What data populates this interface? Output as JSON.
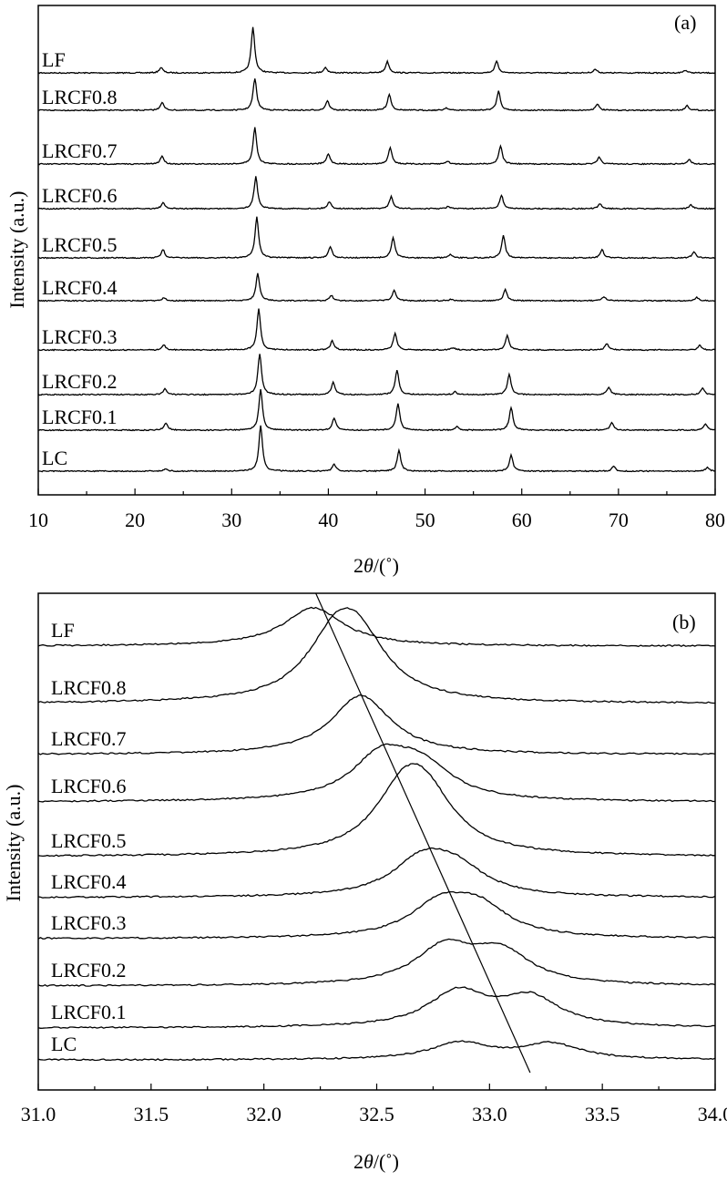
{
  "chart_data": [
    {
      "type": "line",
      "panel_label": "(a)",
      "xlabel_prefix": "2",
      "xlabel_symbol": "θ",
      "xlabel_suffix": "/(˚)",
      "ylabel": "Intensity (a.u.)",
      "xlim": [
        10,
        80
      ],
      "xticks": [
        "10",
        "20",
        "30",
        "40",
        "50",
        "60",
        "70",
        "80"
      ],
      "grid": false,
      "series": [
        {
          "name": "LF",
          "peaks": [
            [
              22.7,
              0.12
            ],
            [
              32.2,
              1.0
            ],
            [
              39.7,
              0.12
            ],
            [
              46.1,
              0.25
            ],
            [
              57.4,
              0.25
            ],
            [
              67.6,
              0.08
            ],
            [
              76.9,
              0.06
            ]
          ]
        },
        {
          "name": "LRCF0.8",
          "peaks": [
            [
              22.8,
              0.25
            ],
            [
              32.4,
              1.0
            ],
            [
              39.9,
              0.3
            ],
            [
              46.3,
              0.5
            ],
            [
              52.2,
              0.08
            ],
            [
              57.6,
              0.6
            ],
            [
              67.8,
              0.2
            ],
            [
              77.1,
              0.15
            ]
          ]
        },
        {
          "name": "LRCF0.7",
          "peaks": [
            [
              22.8,
              0.22
            ],
            [
              32.4,
              1.0
            ],
            [
              40.0,
              0.28
            ],
            [
              46.4,
              0.45
            ],
            [
              52.3,
              0.08
            ],
            [
              57.8,
              0.5
            ],
            [
              68.0,
              0.18
            ],
            [
              77.3,
              0.13
            ]
          ]
        },
        {
          "name": "LRCF0.6",
          "peaks": [
            [
              22.9,
              0.18
            ],
            [
              32.5,
              1.0
            ],
            [
              40.1,
              0.22
            ],
            [
              46.5,
              0.38
            ],
            [
              52.4,
              0.07
            ],
            [
              57.9,
              0.42
            ],
            [
              68.1,
              0.15
            ],
            [
              77.5,
              0.12
            ]
          ]
        },
        {
          "name": "LRCF0.5",
          "peaks": [
            [
              22.9,
              0.2
            ],
            [
              32.6,
              1.0
            ],
            [
              40.2,
              0.28
            ],
            [
              46.7,
              0.5
            ],
            [
              52.6,
              0.08
            ],
            [
              58.1,
              0.55
            ],
            [
              68.3,
              0.2
            ],
            [
              77.8,
              0.15
            ]
          ]
        },
        {
          "name": "LRCF0.4",
          "peaks": [
            [
              23.0,
              0.12
            ],
            [
              32.7,
              1.0
            ],
            [
              40.3,
              0.2
            ],
            [
              46.8,
              0.38
            ],
            [
              52.7,
              0.06
            ],
            [
              58.3,
              0.4
            ],
            [
              68.5,
              0.14
            ],
            [
              78.1,
              0.12
            ]
          ]
        },
        {
          "name": "LRCF0.3",
          "peaks": [
            [
              23.0,
              0.12
            ],
            [
              32.8,
              1.0
            ],
            [
              40.4,
              0.22
            ],
            [
              46.9,
              0.4
            ],
            [
              52.9,
              0.06
            ],
            [
              58.5,
              0.35
            ],
            [
              68.8,
              0.15
            ],
            [
              78.4,
              0.12
            ]
          ]
        },
        {
          "name": "LRCF0.2",
          "peaks": [
            [
              23.1,
              0.15
            ],
            [
              32.9,
              1.0
            ],
            [
              40.5,
              0.3
            ],
            [
              47.1,
              0.6
            ],
            [
              53.1,
              0.07
            ],
            [
              58.7,
              0.5
            ],
            [
              69.0,
              0.18
            ],
            [
              78.7,
              0.15
            ]
          ]
        },
        {
          "name": "LRCF0.1",
          "peaks": [
            [
              23.2,
              0.18
            ],
            [
              33.0,
              1.0
            ],
            [
              40.6,
              0.3
            ],
            [
              47.2,
              0.65
            ],
            [
              53.3,
              0.08
            ],
            [
              58.9,
              0.55
            ],
            [
              69.3,
              0.18
            ],
            [
              79.0,
              0.15
            ]
          ]
        },
        {
          "name": "LC",
          "peaks": [
            [
              23.2,
              0.05
            ],
            [
              33.0,
              1.0
            ],
            [
              40.6,
              0.15
            ],
            [
              47.3,
              0.45
            ],
            [
              58.9,
              0.35
            ],
            [
              69.5,
              0.1
            ],
            [
              79.2,
              0.08
            ]
          ]
        }
      ]
    },
    {
      "type": "line",
      "panel_label": "(b)",
      "xlabel_prefix": "2",
      "xlabel_symbol": "θ",
      "xlabel_suffix": "/(˚)",
      "ylabel": "Intensity (a.u.)",
      "xlim": [
        31.0,
        34.0
      ],
      "xticks": [
        "31.0",
        "31.5",
        "32.0",
        "32.5",
        "33.0",
        "33.5",
        "34.0"
      ],
      "grid": false,
      "trend_line": {
        "x_start": 32.23,
        "x_end": 33.18
      },
      "series": [
        {
          "name": "LF",
          "peaks": [
            [
              32.22,
              1.0
            ]
          ]
        },
        {
          "name": "LRCF0.8",
          "peaks": [
            [
              32.32,
              0.85
            ],
            [
              32.42,
              0.75
            ]
          ]
        },
        {
          "name": "LRCF0.7",
          "peaks": [
            [
              32.43,
              0.9
            ]
          ]
        },
        {
          "name": "LRCF0.6",
          "peaks": [
            [
              32.52,
              0.75
            ],
            [
              32.7,
              0.55
            ]
          ]
        },
        {
          "name": "LRCF0.5",
          "peaks": [
            [
              32.62,
              0.85
            ],
            [
              32.72,
              0.7
            ]
          ]
        },
        {
          "name": "LRCF0.4",
          "peaks": [
            [
              32.7,
              0.75
            ],
            [
              32.85,
              0.55
            ]
          ]
        },
        {
          "name": "LRCF0.3",
          "peaks": [
            [
              32.78,
              0.75
            ],
            [
              32.95,
              0.7
            ]
          ]
        },
        {
          "name": "LRCF0.2",
          "peaks": [
            [
              32.8,
              0.8
            ],
            [
              33.05,
              0.7
            ]
          ]
        },
        {
          "name": "LRCF0.1",
          "peaks": [
            [
              32.86,
              0.85
            ],
            [
              33.18,
              0.7
            ]
          ]
        },
        {
          "name": "LC",
          "peaks": [
            [
              32.87,
              0.9
            ],
            [
              33.27,
              0.85
            ]
          ]
        }
      ]
    }
  ]
}
